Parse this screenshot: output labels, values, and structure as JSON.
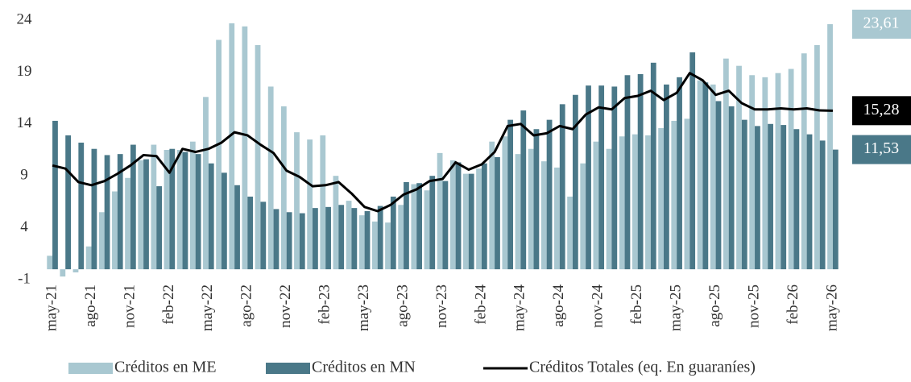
{
  "chart_data": {
    "type": "bar_line",
    "categories": [
      "may-21",
      null,
      null,
      "ago-21",
      null,
      null,
      "nov-21",
      null,
      null,
      "feb-22",
      null,
      null,
      "may-22",
      null,
      null,
      "ago-22",
      null,
      null,
      "nov-22",
      null,
      null,
      "feb-23",
      null,
      null,
      "may-23",
      null,
      null,
      "ago-23",
      null,
      null,
      "nov-23",
      null,
      null,
      "feb-24",
      null,
      null,
      "may-24",
      null,
      null,
      "ago-24",
      null,
      null,
      "nov-24",
      null,
      null,
      "feb-25",
      null,
      null,
      "may-25",
      null,
      null,
      "ago-25",
      null,
      null,
      "nov-25",
      null,
      null,
      "feb-26",
      null,
      null,
      "may-26"
    ],
    "series": [
      {
        "name": "Créditos en ME",
        "kind": "bar",
        "color": "#a9c8d1",
        "values": [
          1.3,
          -0.7,
          -0.3,
          2.2,
          5.5,
          7.5,
          8.8,
          10.5,
          12.0,
          11.5,
          11.5,
          12.3,
          16.6,
          22.1,
          23.7,
          23.4,
          21.6,
          17.6,
          15.7,
          13.2,
          12.5,
          12.9,
          9.0,
          6.6,
          5.2,
          4.6,
          4.5,
          6.2,
          8.2,
          7.6,
          11.2,
          10.5,
          9.2,
          9.7,
          12.3,
          12.8,
          11.1,
          11.6,
          10.4,
          9.8,
          7.0,
          10.2,
          12.3,
          11.6,
          12.8,
          13.0,
          12.9,
          13.6,
          14.3,
          14.5,
          18.2,
          17.8,
          20.3,
          19.6,
          18.7,
          18.5,
          18.9,
          19.3,
          20.8,
          21.6,
          23.61
        ],
        "value_labels": [
          null,
          null,
          null,
          null,
          null,
          null,
          null,
          null,
          null,
          null,
          null,
          null,
          null,
          null,
          null,
          null,
          null,
          null,
          null,
          null,
          null,
          null,
          null,
          null,
          null,
          null,
          null,
          null,
          null,
          null,
          null,
          null,
          null,
          null,
          null,
          null,
          null,
          null,
          null,
          null,
          null,
          null,
          null,
          null,
          null,
          null,
          null,
          null,
          null,
          null,
          null,
          null,
          null,
          null,
          null,
          null,
          null,
          null,
          null,
          null,
          "23,61"
        ]
      },
      {
        "name": "Créditos en MN",
        "kind": "bar",
        "color": "#4a7888",
        "values": [
          14.3,
          12.9,
          12.2,
          11.6,
          11.0,
          11.1,
          12.0,
          10.6,
          8.0,
          11.6,
          11.3,
          11.1,
          10.2,
          9.3,
          8.1,
          7.0,
          6.5,
          5.8,
          5.5,
          5.4,
          5.9,
          6.0,
          6.2,
          5.9,
          5.6,
          6.1,
          7.0,
          8.4,
          8.3,
          9.0,
          8.5,
          10.3,
          9.2,
          10.2,
          10.8,
          14.4,
          15.3,
          13.5,
          14.4,
          15.9,
          16.8,
          17.7,
          17.7,
          17.6,
          18.7,
          18.8,
          19.9,
          17.8,
          18.5,
          20.9,
          18.0,
          16.2,
          15.7,
          14.4,
          13.8,
          14.0,
          13.9,
          13.5,
          13.0,
          12.4,
          11.53
        ],
        "value_labels": [
          null,
          null,
          null,
          null,
          null,
          null,
          null,
          null,
          null,
          null,
          null,
          null,
          null,
          null,
          null,
          null,
          null,
          null,
          null,
          null,
          null,
          null,
          null,
          null,
          null,
          null,
          null,
          null,
          null,
          null,
          null,
          null,
          null,
          null,
          null,
          null,
          null,
          null,
          null,
          null,
          null,
          null,
          null,
          null,
          null,
          null,
          null,
          null,
          null,
          null,
          null,
          null,
          null,
          null,
          null,
          null,
          null,
          null,
          null,
          null,
          "11,53"
        ]
      },
      {
        "name": "Créditos Totales (eq. En guaraníes)",
        "kind": "line",
        "color": "#000000",
        "values": [
          10.0,
          9.7,
          8.4,
          8.1,
          8.5,
          9.2,
          10.0,
          11.0,
          10.9,
          9.3,
          11.6,
          11.3,
          11.6,
          12.2,
          13.2,
          12.9,
          12.0,
          11.2,
          9.5,
          8.9,
          8.0,
          8.1,
          8.4,
          7.3,
          6.0,
          5.6,
          6.2,
          7.2,
          7.7,
          8.5,
          8.7,
          10.3,
          9.6,
          10.1,
          11.3,
          13.8,
          14.0,
          12.9,
          13.1,
          13.8,
          13.5,
          14.9,
          15.6,
          15.4,
          16.5,
          16.7,
          17.2,
          16.3,
          17.0,
          18.9,
          18.2,
          16.8,
          17.2,
          16.0,
          15.4,
          15.4,
          15.5,
          15.4,
          15.5,
          15.3,
          15.28
        ],
        "value_labels": [
          null,
          null,
          null,
          null,
          null,
          null,
          null,
          null,
          null,
          null,
          null,
          null,
          null,
          null,
          null,
          null,
          null,
          null,
          null,
          null,
          null,
          null,
          null,
          null,
          null,
          null,
          null,
          null,
          null,
          null,
          null,
          null,
          null,
          null,
          null,
          null,
          null,
          null,
          null,
          null,
          null,
          null,
          null,
          null,
          null,
          null,
          null,
          null,
          null,
          null,
          null,
          null,
          null,
          null,
          null,
          null,
          null,
          null,
          null,
          null,
          "15,28"
        ]
      }
    ],
    "ylim": [
      -1,
      24
    ],
    "yticks": [
      -1,
      4,
      9,
      14,
      19,
      24
    ],
    "legend": "bottom"
  }
}
